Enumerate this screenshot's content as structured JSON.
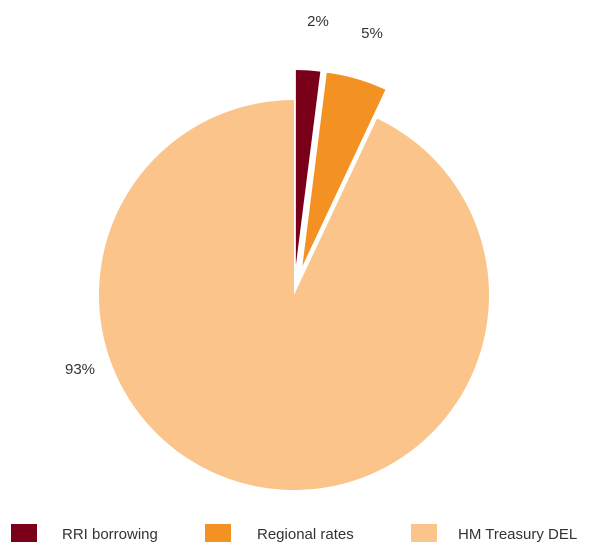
{
  "chart_data": {
    "type": "pie",
    "title": "",
    "slices": [
      {
        "label": "RRI borrowing",
        "value": 2,
        "display": "2%",
        "color": "#7a0019",
        "exploded": true
      },
      {
        "label": "Regional rates",
        "value": 5,
        "display": "5%",
        "color": "#f39223",
        "exploded": true
      },
      {
        "label": "HM Treasury DEL",
        "value": 93,
        "display": "93%",
        "color": "#fbc48b",
        "exploded": false
      }
    ],
    "legend": {
      "placement": "bottom"
    }
  }
}
